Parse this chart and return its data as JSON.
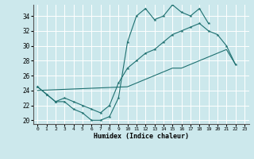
{
  "xlabel": "Humidex (Indice chaleur)",
  "xlim": [
    -0.5,
    23.5
  ],
  "ylim": [
    19.5,
    35.5
  ],
  "xticks": [
    0,
    1,
    2,
    3,
    4,
    5,
    6,
    7,
    8,
    9,
    10,
    11,
    12,
    13,
    14,
    15,
    16,
    17,
    18,
    19,
    20,
    21,
    22,
    23
  ],
  "yticks": [
    20,
    22,
    24,
    26,
    28,
    30,
    32,
    34
  ],
  "bg_color": "#cce8ec",
  "grid_color": "#ffffff",
  "line_color": "#1e7070",
  "line1_x": [
    0,
    1,
    2,
    3,
    4,
    5,
    6,
    7,
    8,
    9,
    10,
    11,
    12,
    13,
    14,
    15,
    16,
    17,
    18,
    19
  ],
  "line1_y": [
    24.5,
    23.5,
    22.5,
    22.5,
    21.5,
    21.0,
    20.0,
    20.0,
    20.5,
    23.0,
    30.5,
    34.0,
    35.0,
    33.5,
    34.0,
    35.5,
    34.5,
    34.0,
    35.0,
    33.0
  ],
  "line2_x": [
    0,
    1,
    2,
    3,
    4,
    5,
    6,
    7,
    8,
    9,
    10,
    11,
    12,
    13,
    14,
    15,
    16,
    17,
    18,
    19,
    20,
    21,
    22
  ],
  "line2_y": [
    24.5,
    23.5,
    22.5,
    23.0,
    22.5,
    22.0,
    21.5,
    21.0,
    22.0,
    25.0,
    27.0,
    28.0,
    29.0,
    29.5,
    30.5,
    31.5,
    32.0,
    32.5,
    33.0,
    32.0,
    31.5,
    30.0,
    27.5
  ],
  "line3_x": [
    0,
    10,
    11,
    12,
    13,
    14,
    15,
    16,
    17,
    18,
    19,
    20,
    21,
    22
  ],
  "line3_y": [
    24.0,
    24.5,
    25.0,
    25.5,
    26.0,
    26.5,
    27.0,
    27.0,
    27.5,
    28.0,
    28.5,
    29.0,
    29.5,
    27.5
  ]
}
